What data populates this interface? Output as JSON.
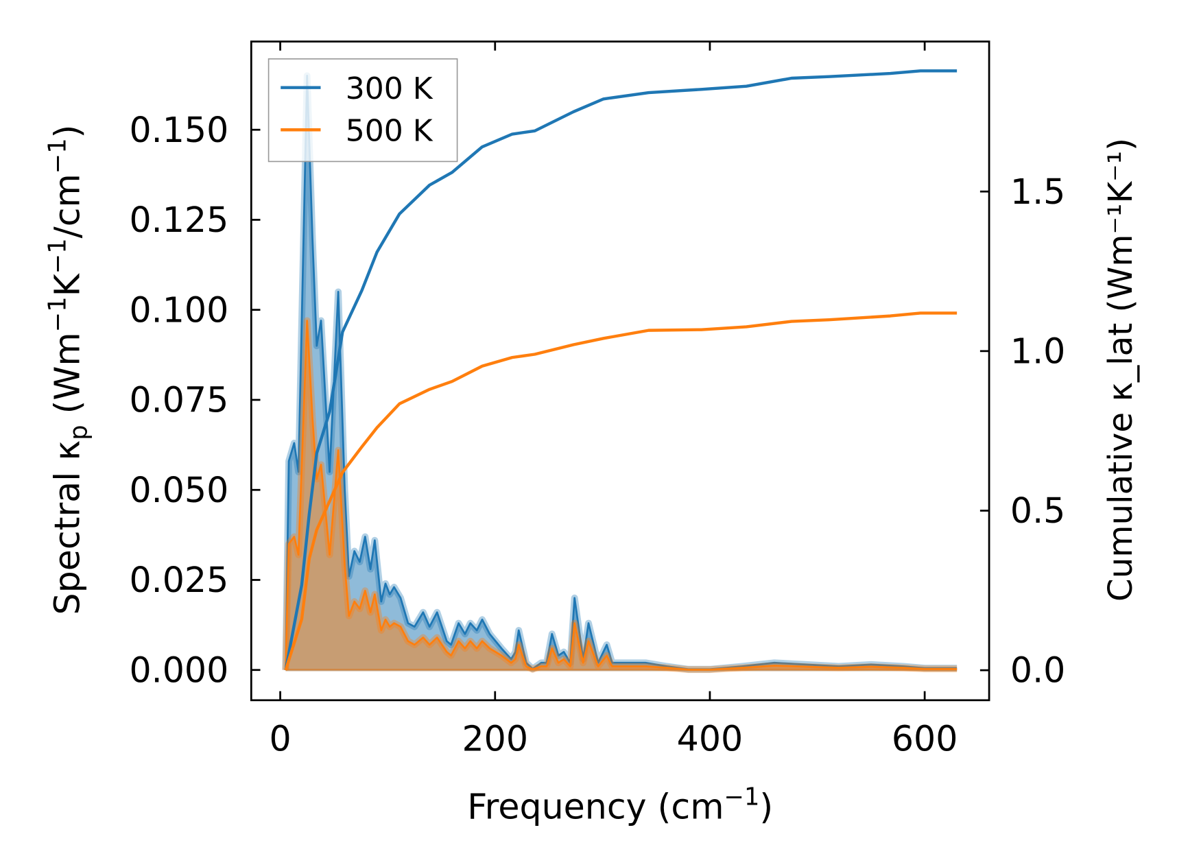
{
  "chart_data": {
    "type": "line",
    "xlabel": "Frequency (cm⁻¹)",
    "ylabel_left": "Spectral κₚ (Wm⁻¹K⁻¹/cm⁻¹)",
    "ylabel_right": "Cumulative κ_lat (Wm⁻¹K⁻¹)",
    "ylabel_left_parts": {
      "pre": "Spectral κ",
      "sub": "p",
      "post": " (Wm",
      "sup1": "−1",
      "mid": "K",
      "sup2": "−1",
      "end": "/cm",
      "sup3": "−1",
      "close": ")"
    },
    "ylabel_right_parts": {
      "pre": "Cumulative κ",
      "sub": "lat",
      "post": " (Wm",
      "sup1": "−1",
      "mid": "K",
      "sup2": "−1",
      "close": ")"
    },
    "xlabel_parts": {
      "pre": "Frequency (cm",
      "sup": "−1",
      "close": ")"
    },
    "xlim": [
      -27,
      660
    ],
    "ylim_left": [
      -0.0084,
      0.1745
    ],
    "ylim_right": [
      -0.094,
      1.97
    ],
    "xticks": [
      "0",
      "200",
      "400",
      "600"
    ],
    "xtick_values": [
      0,
      200,
      400,
      600
    ],
    "yticks_left": [
      "0.000",
      "0.025",
      "0.050",
      "0.075",
      "0.100",
      "0.125",
      "0.150"
    ],
    "ytick_left_values": [
      0,
      0.025,
      0.05,
      0.075,
      0.1,
      0.125,
      0.15
    ],
    "yticks_right": [
      "0.0",
      "0.5",
      "1.0",
      "1.5"
    ],
    "ytick_right_values": [
      0,
      0.5,
      1.0,
      1.5
    ],
    "legend": {
      "placement": "upper-left",
      "entries": [
        "300 K",
        "500 K"
      ]
    },
    "colors": {
      "300 K": "#1f77b4",
      "500 K": "#ff7f0e"
    },
    "spectral": {
      "x": [
        5,
        8,
        13,
        17,
        25,
        30,
        34,
        38,
        46,
        54,
        60,
        64,
        69,
        74,
        79,
        84,
        88,
        94,
        98,
        102,
        106,
        112,
        119,
        125,
        133,
        139,
        146,
        155,
        159,
        166,
        172,
        177,
        183,
        188,
        195,
        206,
        215,
        219,
        222,
        229,
        235,
        243,
        248,
        253,
        259,
        264,
        270,
        274,
        282,
        287,
        296,
        304,
        309,
        320,
        340,
        360,
        380,
        400,
        430,
        460,
        490,
        520,
        550,
        580,
        600,
        630
      ],
      "series": [
        {
          "name": "300 K",
          "values": [
            0,
            0.058,
            0.063,
            0.055,
            0.165,
            0.12,
            0.09,
            0.097,
            0.055,
            0.105,
            0.05,
            0.026,
            0.033,
            0.03,
            0.037,
            0.028,
            0.036,
            0.019,
            0.024,
            0.021,
            0.023,
            0.02,
            0.013,
            0.012,
            0.016,
            0.012,
            0.016,
            0.008,
            0.007,
            0.013,
            0.01,
            0.013,
            0.011,
            0.014,
            0.01,
            0.006,
            0.003,
            0.005,
            0.011,
            0.002,
            0.0003,
            0.002,
            0.002,
            0.01,
            0.004,
            0.005,
            0.002,
            0.02,
            0.003,
            0.013,
            0.002,
            0.007,
            0.002,
            0.002,
            0.002,
            0.001,
            0.0002,
            0.0002,
            0.001,
            0.002,
            0.0015,
            0.001,
            0.0015,
            0.001,
            0.0005,
            0.0005
          ]
        },
        {
          "name": "500 K",
          "values": [
            0,
            0.035,
            0.037,
            0.032,
            0.097,
            0.07,
            0.053,
            0.057,
            0.032,
            0.061,
            0.029,
            0.015,
            0.019,
            0.017,
            0.022,
            0.016,
            0.021,
            0.011,
            0.014,
            0.012,
            0.013,
            0.012,
            0.008,
            0.007,
            0.009,
            0.007,
            0.009,
            0.005,
            0.004,
            0.008,
            0.006,
            0.008,
            0.006,
            0.008,
            0.006,
            0.004,
            0.002,
            0.003,
            0.007,
            0.001,
            0.0002,
            0.001,
            0.001,
            0.006,
            0.002,
            0.003,
            0.001,
            0.013,
            0.002,
            0.008,
            0.001,
            0.004,
            0.001,
            0.001,
            0.001,
            0.0006,
            0.0001,
            0.0001,
            0.0006,
            0.0012,
            0.0009,
            0.0006,
            0.0009,
            0.0006,
            0.0003,
            0.0003
          ]
        }
      ]
    },
    "cumulative": {
      "x": [
        5,
        20,
        27,
        34,
        46,
        58,
        76,
        90,
        111,
        139,
        160,
        188,
        216,
        237,
        273,
        301,
        343,
        392,
        434,
        476,
        511,
        568,
        596,
        630
      ],
      "series": [
        {
          "name": "300 K",
          "values": [
            0,
            0.267,
            0.49,
            0.68,
            0.81,
            1.06,
            1.19,
            1.31,
            1.43,
            1.52,
            1.56,
            1.64,
            1.68,
            1.69,
            1.75,
            1.79,
            1.81,
            1.82,
            1.83,
            1.855,
            1.86,
            1.87,
            1.878,
            1.878
          ]
        },
        {
          "name": "500 K",
          "values": [
            0,
            0.16,
            0.35,
            0.44,
            0.53,
            0.62,
            0.7,
            0.76,
            0.835,
            0.88,
            0.905,
            0.953,
            0.98,
            0.99,
            1.02,
            1.04,
            1.065,
            1.067,
            1.076,
            1.093,
            1.098,
            1.11,
            1.119,
            1.119
          ]
        }
      ]
    }
  }
}
